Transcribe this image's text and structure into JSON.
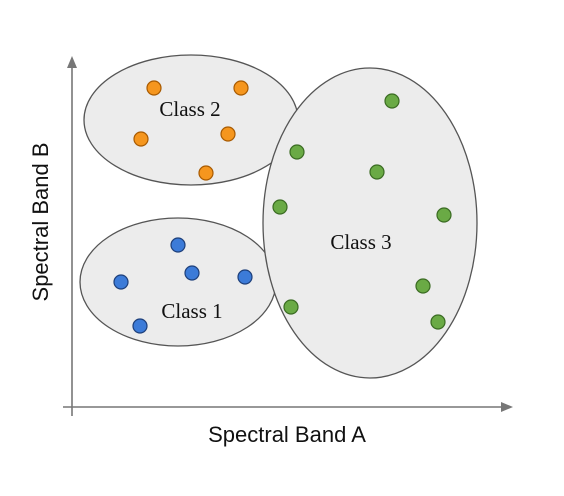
{
  "axes": {
    "x_title": "Spectral Band A",
    "y_title": "Spectral Band B"
  },
  "clusters": [
    {
      "id": "class-2",
      "label": "Class 2",
      "fill": "#f5961e",
      "stroke": "#a85a00",
      "point_count": 5
    },
    {
      "id": "class-1",
      "label": "Class 1",
      "fill": "#3c7bd8",
      "stroke": "#1d3f7a",
      "point_count": 5
    },
    {
      "id": "class-3",
      "label": "Class 3",
      "fill": "#6aaa45",
      "stroke": "#3a6b22",
      "point_count": 8
    }
  ],
  "colors": {
    "cluster_fill": "#ececec",
    "cluster_outline": "#555555",
    "axis": "#777777"
  }
}
